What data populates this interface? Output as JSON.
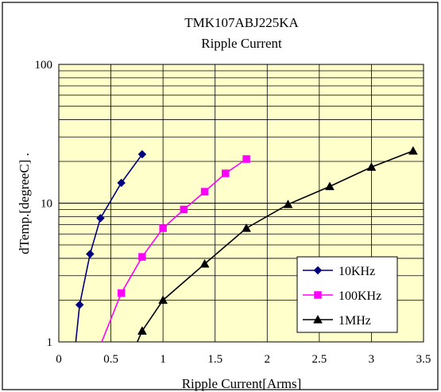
{
  "chart_data": {
    "type": "line",
    "title": "TMK107ABJ225KA",
    "subtitle": "Ripple Current",
    "xlabel": "Ripple Current[Arms]",
    "ylabel": "dTemp.[degreeC] .",
    "xlim": [
      0,
      3.5
    ],
    "ylim": [
      1,
      100
    ],
    "yscale": "log",
    "x_ticks": [
      "0",
      "0.5",
      "1",
      "1.5",
      "2",
      "2.5",
      "3",
      "3.5"
    ],
    "y_ticks": [
      "1",
      "10",
      "100"
    ],
    "grid": true,
    "legend_position": "bottom-right",
    "plot_background": "#FFFFCC",
    "series": [
      {
        "name": "10KHz",
        "color": "#000080",
        "marker": "diamond",
        "points": [
          [
            0.2,
            1.85
          ],
          [
            0.3,
            4.3
          ],
          [
            0.4,
            7.8
          ],
          [
            0.6,
            14
          ],
          [
            0.8,
            22.5
          ]
        ],
        "line_extension": [
          [
            0.16,
            0.95
          ],
          [
            0.2,
            1.85
          ]
        ]
      },
      {
        "name": "100KHz",
        "color": "#FF00FF",
        "marker": "square",
        "points": [
          [
            0.6,
            2.25
          ],
          [
            0.8,
            4.1
          ],
          [
            1.0,
            6.6
          ],
          [
            1.2,
            9.0
          ],
          [
            1.4,
            12.1
          ],
          [
            1.6,
            16.4
          ],
          [
            1.8,
            20.8
          ]
        ],
        "line_extension": [
          [
            0.4,
            0.95
          ],
          [
            0.6,
            2.25
          ]
        ]
      },
      {
        "name": "1MHz",
        "color": "#000000",
        "marker": "triangle",
        "points": [
          [
            0.8,
            1.2
          ],
          [
            1.0,
            2.0
          ],
          [
            1.4,
            3.65
          ],
          [
            1.8,
            6.6
          ],
          [
            2.2,
            9.8
          ],
          [
            2.6,
            13.2
          ],
          [
            3.0,
            18.2
          ],
          [
            3.4,
            23.8
          ]
        ],
        "line_extension": [
          [
            0.74,
            0.95
          ],
          [
            0.8,
            1.2
          ]
        ]
      }
    ]
  }
}
